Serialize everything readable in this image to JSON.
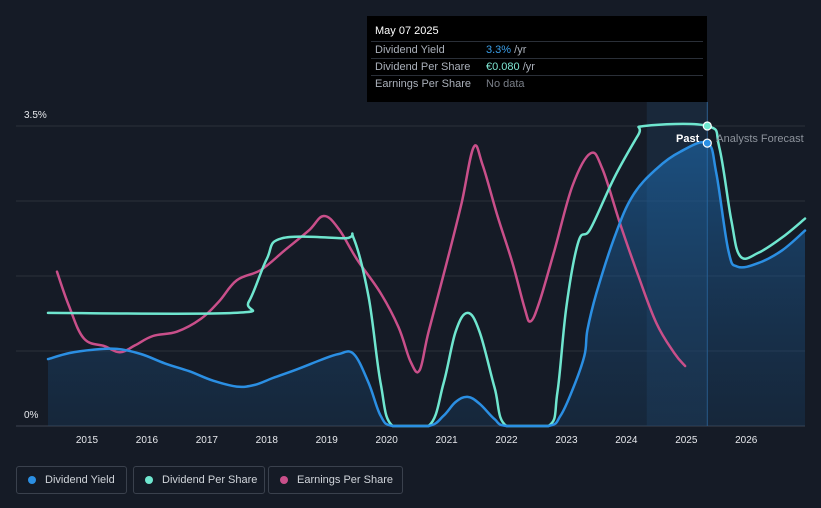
{
  "tooltip": {
    "date": "May 07 2025",
    "rows": [
      {
        "label": "Dividend Yield",
        "value": "3.3%",
        "unit": " /yr",
        "color": "#3a9ee8"
      },
      {
        "label": "Dividend Per Share",
        "value": "€0.080",
        "unit": " /yr",
        "color": "#7fe8d4"
      },
      {
        "label": "Earnings Per Share",
        "value": "No data",
        "unit": "",
        "color": "#7a7f88"
      }
    ]
  },
  "legend": [
    {
      "label": "Dividend Yield",
      "color": "#2b8fe3"
    },
    {
      "label": "Dividend Per Share",
      "color": "#6fe6cf"
    },
    {
      "label": "Earnings Per Share",
      "color": "#c94f8a"
    }
  ],
  "chart_data": {
    "type": "line",
    "title": "",
    "y_top_label": "3.5%",
    "y_bottom_label": "0%",
    "ylim": [
      0,
      3.5
    ],
    "xlim": [
      2014.35,
      2026.98
    ],
    "x_ticks": [
      "2015",
      "2016",
      "2017",
      "2018",
      "2019",
      "2020",
      "2021",
      "2022",
      "2023",
      "2024",
      "2025",
      "2026"
    ],
    "past_label": "Past",
    "forecast_label": "Analysts Forecast",
    "past_end_x": 2025.35,
    "forecast_band_start_x": 2024.34,
    "series": [
      {
        "name": "Dividend Yield",
        "color": "#2b8fe3",
        "fill": true,
        "points": [
          [
            2014.35,
            0.78
          ],
          [
            2014.7,
            0.85
          ],
          [
            2015.1,
            0.89
          ],
          [
            2015.5,
            0.9
          ],
          [
            2015.9,
            0.84
          ],
          [
            2016.3,
            0.73
          ],
          [
            2016.7,
            0.64
          ],
          [
            2017.1,
            0.53
          ],
          [
            2017.5,
            0.46
          ],
          [
            2017.8,
            0.48
          ],
          [
            2018.1,
            0.56
          ],
          [
            2018.5,
            0.66
          ],
          [
            2018.9,
            0.77
          ],
          [
            2019.2,
            0.84
          ],
          [
            2019.45,
            0.84
          ],
          [
            2019.7,
            0.5
          ],
          [
            2019.9,
            0.12
          ],
          [
            2020.1,
            0.0
          ],
          [
            2020.7,
            0.0
          ],
          [
            2020.95,
            0.12
          ],
          [
            2021.15,
            0.28
          ],
          [
            2021.35,
            0.34
          ],
          [
            2021.55,
            0.26
          ],
          [
            2021.8,
            0.08
          ],
          [
            2022.0,
            0.0
          ],
          [
            2022.7,
            0.0
          ],
          [
            2022.9,
            0.12
          ],
          [
            2023.1,
            0.42
          ],
          [
            2023.3,
            0.82
          ],
          [
            2023.35,
            1.12
          ],
          [
            2023.5,
            1.55
          ],
          [
            2023.8,
            2.2
          ],
          [
            2024.1,
            2.68
          ],
          [
            2024.5,
            3.0
          ],
          [
            2024.9,
            3.2
          ],
          [
            2025.35,
            3.3
          ],
          [
            2025.5,
            2.95
          ],
          [
            2025.7,
            2.05
          ],
          [
            2025.85,
            1.86
          ],
          [
            2026.2,
            1.9
          ],
          [
            2026.6,
            2.05
          ],
          [
            2026.98,
            2.28
          ]
        ]
      },
      {
        "name": "Dividend Per Share",
        "color": "#6fe6cf",
        "fill": false,
        "points": [
          [
            2014.35,
            1.32
          ],
          [
            2017.45,
            1.32
          ],
          [
            2017.7,
            1.45
          ],
          [
            2018.0,
            1.95
          ],
          [
            2018.25,
            2.19
          ],
          [
            2019.3,
            2.19
          ],
          [
            2019.45,
            2.19
          ],
          [
            2019.7,
            1.5
          ],
          [
            2019.9,
            0.5
          ],
          [
            2020.1,
            0.0
          ],
          [
            2020.7,
            0.0
          ],
          [
            2020.95,
            0.5
          ],
          [
            2021.15,
            1.1
          ],
          [
            2021.35,
            1.32
          ],
          [
            2021.55,
            1.1
          ],
          [
            2021.8,
            0.45
          ],
          [
            2022.0,
            0.0
          ],
          [
            2022.7,
            0.0
          ],
          [
            2022.85,
            0.4
          ],
          [
            2023.0,
            1.4
          ],
          [
            2023.2,
            2.15
          ],
          [
            2023.4,
            2.3
          ],
          [
            2023.8,
            2.9
          ],
          [
            2024.2,
            3.4
          ],
          [
            2024.3,
            3.5
          ],
          [
            2025.35,
            3.5
          ],
          [
            2025.55,
            3.25
          ],
          [
            2025.75,
            2.4
          ],
          [
            2025.9,
            1.98
          ],
          [
            2026.2,
            2.02
          ],
          [
            2026.6,
            2.2
          ],
          [
            2026.98,
            2.42
          ]
        ]
      },
      {
        "name": "Earnings Per Share",
        "color": "#c94f8a",
        "fill": false,
        "points": [
          [
            2014.5,
            1.8
          ],
          [
            2014.7,
            1.4
          ],
          [
            2014.95,
            1.02
          ],
          [
            2015.3,
            0.93
          ],
          [
            2015.55,
            0.86
          ],
          [
            2015.8,
            0.94
          ],
          [
            2016.1,
            1.05
          ],
          [
            2016.5,
            1.1
          ],
          [
            2016.9,
            1.25
          ],
          [
            2017.2,
            1.45
          ],
          [
            2017.5,
            1.7
          ],
          [
            2017.9,
            1.82
          ],
          [
            2018.3,
            2.05
          ],
          [
            2018.7,
            2.28
          ],
          [
            2018.95,
            2.45
          ],
          [
            2019.2,
            2.3
          ],
          [
            2019.5,
            1.95
          ],
          [
            2019.9,
            1.55
          ],
          [
            2020.2,
            1.15
          ],
          [
            2020.4,
            0.75
          ],
          [
            2020.55,
            0.65
          ],
          [
            2020.7,
            1.1
          ],
          [
            2021.0,
            1.9
          ],
          [
            2021.25,
            2.6
          ],
          [
            2021.45,
            3.25
          ],
          [
            2021.6,
            3.05
          ],
          [
            2021.85,
            2.45
          ],
          [
            2022.1,
            1.9
          ],
          [
            2022.3,
            1.38
          ],
          [
            2022.4,
            1.22
          ],
          [
            2022.55,
            1.45
          ],
          [
            2022.8,
            2.05
          ],
          [
            2023.1,
            2.8
          ],
          [
            2023.4,
            3.18
          ],
          [
            2023.6,
            3.0
          ],
          [
            2023.9,
            2.35
          ],
          [
            2024.2,
            1.75
          ],
          [
            2024.5,
            1.2
          ],
          [
            2024.8,
            0.85
          ],
          [
            2024.98,
            0.7
          ]
        ]
      }
    ]
  }
}
